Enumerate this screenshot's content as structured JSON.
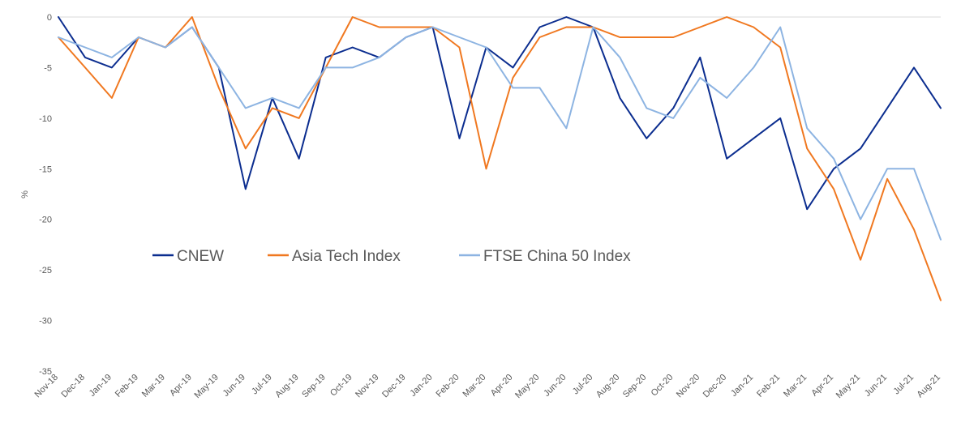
{
  "chart_data": {
    "type": "line",
    "title": "",
    "xlabel": "",
    "ylabel": "%",
    "ylim": [
      -35,
      0
    ],
    "yticks": [
      0,
      -5,
      -10,
      -15,
      -20,
      -25,
      -30,
      -35
    ],
    "grid": false,
    "legend_position": "middle-left",
    "categories": [
      "Nov-18",
      "Dec-18",
      "Jan-19",
      "Feb-19",
      "Mar-19",
      "Apr-19",
      "May-19",
      "Jun-19",
      "Jul-19",
      "Aug-19",
      "Sep-19",
      "Oct-19",
      "Nov-19",
      "Dec-19",
      "Jan-20",
      "Feb-20",
      "Mar-20",
      "Apr-20",
      "May-20",
      "Jun-20",
      "Jul-20",
      "Aug-20",
      "Sep-20",
      "Oct-20",
      "Nov-20",
      "Dec-20",
      "Jan-21",
      "Feb-21",
      "Mar-21",
      "Apr-21",
      "May-21",
      "Jun-21",
      "Jul-21",
      "Aug-21"
    ],
    "series": [
      {
        "name": "CNEW",
        "color": "#0B2D8F",
        "values": [
          0,
          -4,
          -5,
          -2,
          -3,
          -1,
          -5,
          -17,
          -8,
          -14,
          -4,
          -3,
          -4,
          -2,
          -1,
          -12,
          -3,
          -5,
          -1,
          0,
          -1,
          -8,
          -12,
          -9,
          -4,
          -14,
          -12,
          -10,
          -19,
          -15,
          -13,
          -9,
          -5,
          -9
        ]
      },
      {
        "name": "Asia Tech Index",
        "color": "#F07820",
        "values": [
          -2,
          -5,
          -8,
          -2,
          -3,
          0,
          -7,
          -13,
          -9,
          -10,
          -5,
          0,
          -1,
          -1,
          -1,
          -3,
          -15,
          -6,
          -2,
          -1,
          -1,
          -2,
          -2,
          -2,
          -1,
          0,
          -1,
          -3,
          -13,
          -17,
          -24,
          -16,
          -21,
          -28
        ]
      },
      {
        "name": "FTSE China 50 Index",
        "color": "#8DB4E2",
        "values": [
          -2,
          -3,
          -4,
          -2,
          -3,
          -1,
          -5,
          -9,
          -8,
          -9,
          -5,
          -5,
          -4,
          -2,
          -1,
          -2,
          -3,
          -7,
          -7,
          -11,
          -1,
          -4,
          -9,
          -10,
          -6,
          -8,
          -5,
          -1,
          -11,
          -14,
          -20,
          -15,
          -15,
          -22
        ]
      }
    ]
  }
}
